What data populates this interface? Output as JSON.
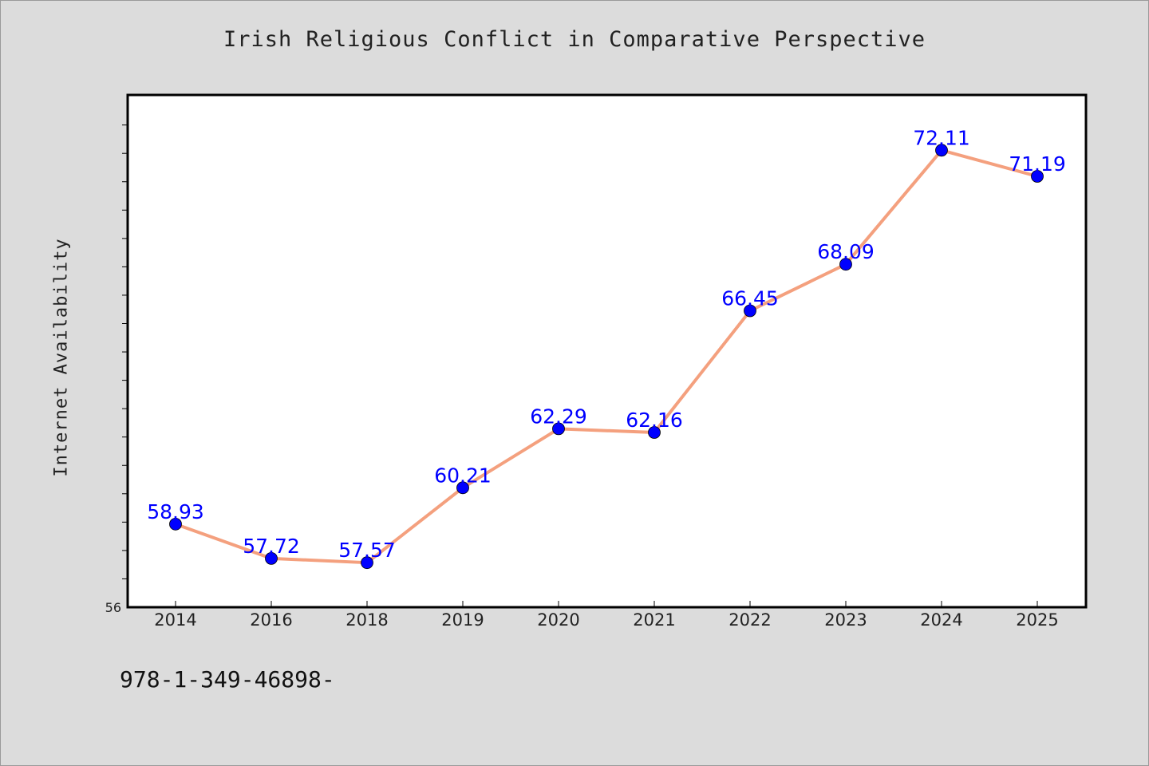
{
  "chart_data": {
    "type": "line",
    "title": "Irish Religious Conflict in Comparative Perspective",
    "xlabel": "",
    "ylabel": "Internet Availability",
    "categories": [
      "2014",
      "2016",
      "2018",
      "2019",
      "2020",
      "2021",
      "2022",
      "2023",
      "2024",
      "2025"
    ],
    "series": [
      {
        "values": [
          58.93,
          57.72,
          57.57,
          60.21,
          62.29,
          62.16,
          66.45,
          68.09,
          72.11,
          71.19
        ],
        "labels": [
          "58.93",
          "57.72",
          "57.57",
          "60.21",
          "62.29",
          "62.16",
          "66.45",
          "68.09",
          "72.11",
          "71.19"
        ],
        "line_color": "#f4a07e",
        "marker_color": "#0000ff"
      }
    ],
    "ylim": [
      56,
      74
    ],
    "ytick_labels": [
      "56"
    ],
    "grid": false,
    "legend": "none"
  },
  "footer": {
    "isbn": "978-1-349-46898-"
  }
}
